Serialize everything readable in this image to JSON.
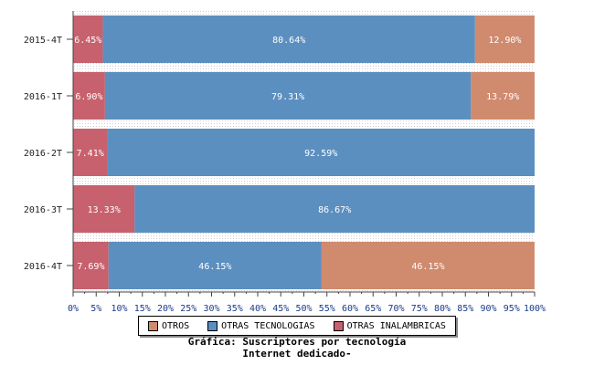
{
  "chart_data": {
    "type": "bar",
    "orientation": "horizontal",
    "stacked": true,
    "categories": [
      "2015-4T",
      "2016-1T",
      "2016-2T",
      "2016-3T",
      "2016-4T"
    ],
    "series": [
      {
        "name": "OTRAS INALAMBRICAS",
        "color": "#c7616d",
        "values": [
          6.45,
          6.9,
          7.41,
          13.33,
          7.69
        ],
        "labels": [
          "6.45%",
          "6.90%",
          "7.41%",
          "13.33%",
          "7.69%"
        ]
      },
      {
        "name": "OTRAS TECNOLOGIAS",
        "color": "#5b8fc0",
        "values": [
          80.64,
          79.31,
          92.59,
          86.67,
          46.15
        ],
        "labels": [
          "80.64%",
          "79.31%",
          "92.59%",
          "86.67%",
          "46.15%"
        ]
      },
      {
        "name": "OTROS",
        "color": "#d08a6e",
        "values": [
          12.9,
          13.79,
          0,
          0,
          46.15
        ],
        "labels": [
          "12.90%",
          "13.79%",
          "",
          "",
          "46.15%"
        ]
      }
    ],
    "xlim": [
      0,
      100
    ],
    "xticks": [
      "0%",
      "5%",
      "10%",
      "15%",
      "20%",
      "25%",
      "30%",
      "35%",
      "40%",
      "45%",
      "50%",
      "55%",
      "60%",
      "65%",
      "70%",
      "75%",
      "80%",
      "85%",
      "90%",
      "95%",
      "100%"
    ],
    "legend_order": [
      "OTROS",
      "OTRAS TECNOLOGIAS",
      "OTRAS INALAMBRICAS"
    ],
    "legend_placement": "bottom",
    "grid": true,
    "title": "Gráfica: Suscriptores por tecnología",
    "subtitle": "Internet dedicado-"
  }
}
